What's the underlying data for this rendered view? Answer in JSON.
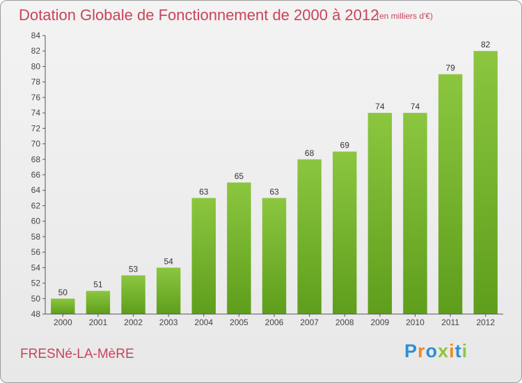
{
  "chart_data": {
    "type": "bar",
    "title": "Dotation Globale de Fonctionnement de 2000 à 2012",
    "subtitle": "(en milliers d'€)",
    "categories": [
      "2000",
      "2001",
      "2002",
      "2003",
      "2004",
      "2005",
      "2006",
      "2007",
      "2008",
      "2009",
      "2010",
      "2011",
      "2012"
    ],
    "values": [
      50,
      51,
      53,
      54,
      63,
      65,
      63,
      68,
      69,
      74,
      74,
      79,
      82
    ],
    "ylim": [
      48,
      84
    ],
    "yticks": [
      48,
      50,
      52,
      54,
      56,
      58,
      60,
      62,
      64,
      66,
      68,
      70,
      72,
      74,
      76,
      78,
      80,
      82,
      84
    ],
    "xlabel": "",
    "ylabel": "",
    "grid": false,
    "bar_color": "#8cc63f",
    "bar_color_dark": "#5e9e1c"
  },
  "footer": {
    "commune": "FRESNé-LA-MèRE",
    "logo_letters": [
      "P",
      "r",
      "o",
      "x",
      "i",
      "t",
      "i"
    ]
  },
  "colors": {
    "accent": "#c8445a"
  }
}
